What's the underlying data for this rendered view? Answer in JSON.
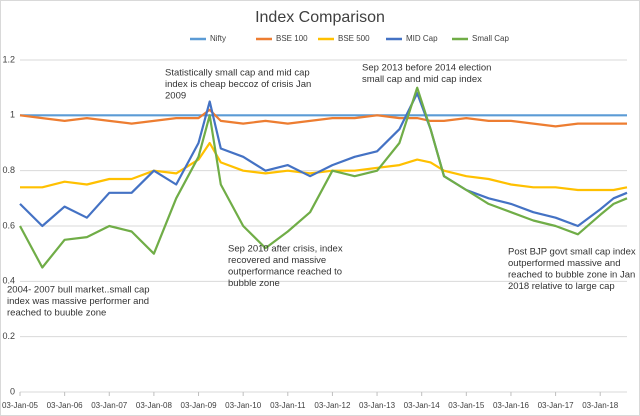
{
  "chart_data": {
    "type": "line",
    "title": "Index Comparison",
    "x": [
      2005,
      2005.5,
      2006,
      2006.5,
      2007,
      2007.5,
      2008,
      2008.5,
      2009,
      2009.25,
      2009.5,
      2010,
      2010.5,
      2011,
      2011.5,
      2012,
      2012.5,
      2013,
      2013.5,
      2013.9,
      2014.2,
      2014.5,
      2015,
      2015.5,
      2016,
      2016.5,
      2017,
      2017.5,
      2018,
      2018.3,
      2018.6
    ],
    "series": [
      {
        "name": "Nifty",
        "color": "#5b9bd5",
        "values": [
          1,
          1,
          1,
          1,
          1,
          1,
          1,
          1,
          1,
          1,
          1,
          1,
          1,
          1,
          1,
          1,
          1,
          1,
          1,
          1,
          1,
          1,
          1,
          1,
          1,
          1,
          1,
          1,
          1,
          1,
          1
        ]
      },
      {
        "name": "BSE 100",
        "color": "#ed7d31",
        "values": [
          1.0,
          0.99,
          0.98,
          0.99,
          0.98,
          0.97,
          0.98,
          0.99,
          0.99,
          1.02,
          0.98,
          0.97,
          0.98,
          0.97,
          0.98,
          0.99,
          0.99,
          1.0,
          0.99,
          0.99,
          0.98,
          0.98,
          0.99,
          0.98,
          0.98,
          0.97,
          0.96,
          0.97,
          0.97,
          0.97,
          0.97
        ]
      },
      {
        "name": "BSE 500",
        "color": "#ffc000",
        "values": [
          0.74,
          0.74,
          0.76,
          0.75,
          0.77,
          0.77,
          0.8,
          0.79,
          0.84,
          0.9,
          0.83,
          0.8,
          0.79,
          0.8,
          0.79,
          0.8,
          0.8,
          0.81,
          0.82,
          0.84,
          0.83,
          0.8,
          0.78,
          0.77,
          0.75,
          0.74,
          0.74,
          0.73,
          0.73,
          0.73,
          0.74
        ]
      },
      {
        "name": "MID Cap",
        "color": "#4472c4",
        "values": [
          0.68,
          0.6,
          0.67,
          0.63,
          0.72,
          0.72,
          0.8,
          0.75,
          0.9,
          1.05,
          0.88,
          0.85,
          0.8,
          0.82,
          0.78,
          0.82,
          0.85,
          0.87,
          0.95,
          1.08,
          0.95,
          0.78,
          0.73,
          0.7,
          0.68,
          0.65,
          0.63,
          0.6,
          0.66,
          0.7,
          0.72
        ]
      },
      {
        "name": "Small Cap",
        "color": "#70ad47",
        "values": [
          0.6,
          0.45,
          0.55,
          0.56,
          0.6,
          0.58,
          0.5,
          0.7,
          0.85,
          1.0,
          0.75,
          0.6,
          0.52,
          0.58,
          0.65,
          0.8,
          0.78,
          0.8,
          0.9,
          1.1,
          0.95,
          0.78,
          0.73,
          0.68,
          0.65,
          0.62,
          0.6,
          0.57,
          0.64,
          0.68,
          0.7
        ]
      }
    ],
    "xlim": [
      2005,
      2018.6
    ],
    "xticks": [
      {
        "value": 2005,
        "label": "03-Jan-05"
      },
      {
        "value": 2006,
        "label": "03-Jan-06"
      },
      {
        "value": 2007,
        "label": "03-Jan-07"
      },
      {
        "value": 2008,
        "label": "03-Jan-08"
      },
      {
        "value": 2009,
        "label": "03-Jan-09"
      },
      {
        "value": 2010,
        "label": "03-Jan-10"
      },
      {
        "value": 2011,
        "label": "03-Jan-11"
      },
      {
        "value": 2012,
        "label": "03-Jan-12"
      },
      {
        "value": 2013,
        "label": "03-Jan-13"
      },
      {
        "value": 2014,
        "label": "03-Jan-14"
      },
      {
        "value": 2015,
        "label": "03-Jan-15"
      },
      {
        "value": 2016,
        "label": "03-Jan-16"
      },
      {
        "value": 2017,
        "label": "03-Jan-17"
      },
      {
        "value": 2018,
        "label": "03-Jan-18"
      }
    ],
    "ylim": [
      0,
      1.2
    ],
    "yticks": [
      0,
      0.2,
      0.4,
      0.6,
      0.8,
      1,
      1.2
    ],
    "grid": true,
    "legend": "top",
    "annotations": [
      [
        "Statistically small cap and mid cap",
        "index is cheap beccoz of crisis Jan",
        "2009"
      ],
      [
        "Sep 2013 before 2014 election",
        "small cap and mid cap index"
      ],
      [
        "Sep 2010 after crisis, index",
        "recovered and massive",
        "outperformance reached to",
        "bubble zone"
      ],
      [
        "2004- 2007 bull market..small cap",
        "index was massive performer and",
        "reached to buuble zone"
      ],
      [
        "Post BJP govt small cap index",
        "outperformed massive and",
        "reached to bubble zone in Jan",
        "2018 relative to large cap"
      ]
    ]
  }
}
